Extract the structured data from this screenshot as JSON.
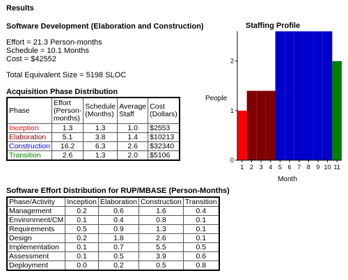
{
  "results_heading": "Results",
  "sw_dev_heading": "Software Development (Elaboration and Construction)",
  "summary": {
    "effort": "Effort = 21.3 Person-months",
    "schedule": "Schedule = 10.1 Months",
    "cost": "Cost = $42552",
    "total_size": "Total Equivalent Size = 5198 SLOC"
  },
  "acq": {
    "title": "Acquisition Phase Distribution",
    "headers": [
      "Phase",
      "Effort (Person-months)",
      "Schedule (Months)",
      "Average Staff",
      "Cost (Dollars)"
    ],
    "rows": [
      {
        "phase": "Inception",
        "effort": "1.3",
        "schedule": "1.3",
        "staff": "1.0",
        "cost": "$2553",
        "color": "#ff0000"
      },
      {
        "phase": "Elaboration",
        "effort": "5.1",
        "schedule": "3.8",
        "staff": "1.4",
        "cost": "$10213",
        "color": "#800000"
      },
      {
        "phase": "Construction",
        "effort": "16.2",
        "schedule": "6.3",
        "staff": "2.6",
        "cost": "$32340",
        "color": "#0000ff"
      },
      {
        "phase": "Transition",
        "effort": "2.6",
        "schedule": "1.3",
        "staff": "2.0",
        "cost": "$5106",
        "color": "#008000"
      }
    ]
  },
  "rup": {
    "title": "Software Effort Distribution for RUP/MBASE (Person-Months)",
    "headers": [
      "Phase/Activity",
      "Inception",
      "Elaboration",
      "Construction",
      "Transition"
    ],
    "rows": [
      [
        "Management",
        "0.2",
        "0.6",
        "1.6",
        "0.4"
      ],
      [
        "Environment/CM",
        "0.1",
        "0.4",
        "0.8",
        "0.1"
      ],
      [
        "Requirements",
        "0.5",
        "0.9",
        "1.3",
        "0.1"
      ],
      [
        "Design",
        "0.2",
        "1.8",
        "2.6",
        "0.1"
      ],
      [
        "Implementation",
        "0.1",
        "0.7",
        "5.5",
        "0.5"
      ],
      [
        "Assessment",
        "0.1",
        "0.5",
        "3.9",
        "0.6"
      ],
      [
        "Deployment",
        "0.0",
        "0.2",
        "0.5",
        "0.8"
      ]
    ]
  },
  "chart_data": {
    "type": "bar",
    "title": "Staffing Profile",
    "xlabel": "Month",
    "ylabel": "People",
    "categories": [
      "1",
      "2",
      "3",
      "4",
      "5",
      "6",
      "7",
      "8",
      "9",
      "10",
      "11"
    ],
    "values": [
      1.0,
      1.4,
      1.4,
      1.4,
      2.6,
      2.6,
      2.6,
      2.6,
      2.6,
      2.6,
      2.0
    ],
    "colors": [
      "#ff0000",
      "#800000",
      "#800000",
      "#800000",
      "#0000cc",
      "#0000cc",
      "#0000cc",
      "#0000cc",
      "#0000cc",
      "#0000cc",
      "#008000"
    ],
    "yticks": [
      0,
      1,
      2
    ],
    "ylim": [
      0,
      2.6
    ],
    "grid": false
  }
}
